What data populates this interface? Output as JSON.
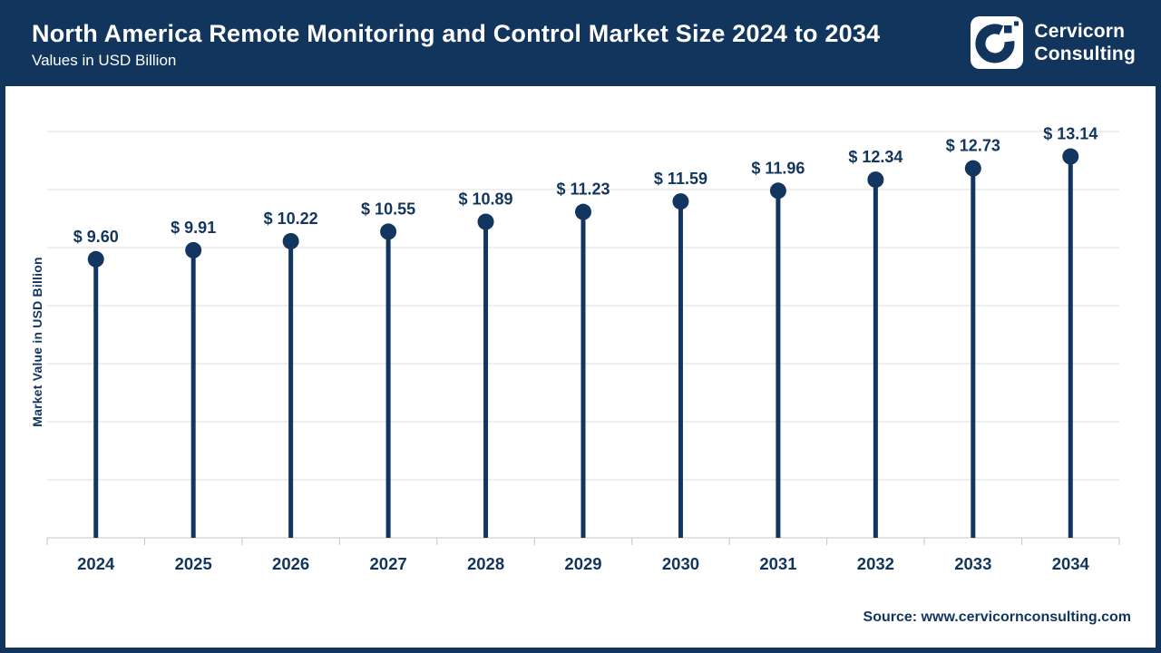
{
  "header": {
    "title": "North America Remote Monitoring and Control Market Size 2024 to 2034",
    "subtitle": "Values in USD Billion",
    "logo": {
      "line1": "Cervicorn",
      "line2": "Consulting"
    }
  },
  "colors": {
    "header_navy": "#12355E",
    "mark_navy": "#12365F",
    "gridline": "#DCDCDC",
    "axis_line": "#C4C4C4",
    "background": "#FFFFFF"
  },
  "chart_data": {
    "type": "lollipop",
    "title": "North America Remote Monitoring and Control Market Size 2024 to 2034",
    "subtitle": "Values in USD Billion",
    "categories": [
      "2024",
      "2025",
      "2026",
      "2027",
      "2028",
      "2029",
      "2030",
      "2031",
      "2032",
      "2033",
      "2034"
    ],
    "values": [
      9.6,
      9.91,
      10.22,
      10.55,
      10.89,
      11.23,
      11.59,
      11.96,
      12.34,
      12.73,
      13.14
    ],
    "display_labels": [
      "$ 9.60",
      "$ 9.91",
      "$ 10.22",
      "$ 10.55",
      "$ 10.89",
      "$ 11.23",
      "$ 11.59",
      "$ 11.96",
      "$ 12.34",
      "$ 12.73",
      "$ 13.14"
    ],
    "xlabel": "",
    "ylabel": "Market Value in USD Billion",
    "ylim": [
      0,
      14
    ],
    "grid_step": 2,
    "grid": "horizontal-only",
    "legend": "none"
  },
  "footer": {
    "source": "Source: www.cervicornconsulting.com"
  }
}
